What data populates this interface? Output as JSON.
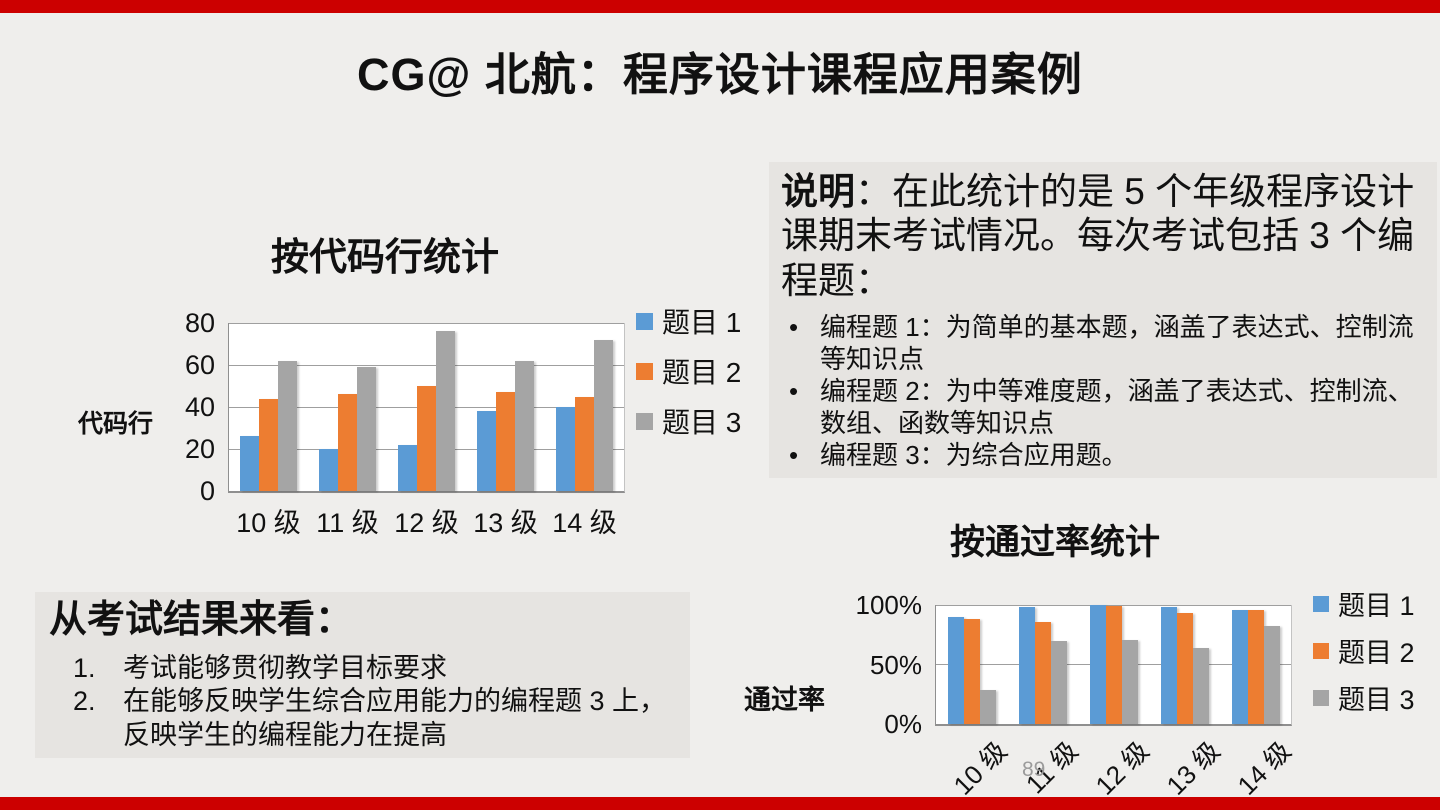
{
  "slide": {
    "title": "CG@ 北航：程序设计课程应用案例",
    "page_number": "89",
    "accent_bar_color": "#cc0000",
    "background_color": "#efeeec",
    "panel_color": "#e6e4e1"
  },
  "description_panel": {
    "heading_bold": "说明",
    "heading_rest": "：在此统计的是 5 个年级程序设计课期末考试情况。每次考试包括 3 个编程题：",
    "bullets": [
      "编程题 1：为简单的基本题，涵盖了表达式、控制流等知识点",
      "编程题 2：为中等难度题，涵盖了表达式、控制流、数组、函数等知识点",
      "编程题 3：为综合应用题。"
    ]
  },
  "conclusion_panel": {
    "heading": "从考试结果来看：",
    "items": [
      "考试能够贯彻教学目标要求",
      "在能够反映学生综合应用能力的编程题 3 上，反映学生的编程能力在提高"
    ]
  },
  "chart_data": [
    {
      "id": "code-lines",
      "type": "bar",
      "title": "按代码行统计",
      "ylabel": "代码行",
      "xlabel": "",
      "categories": [
        "10 级",
        "11 级",
        "12 级",
        "13 级",
        "14 级"
      ],
      "series": [
        {
          "name": "题目 1",
          "color": "#5B9BD5",
          "values": [
            26,
            20,
            22,
            38,
            40
          ]
        },
        {
          "name": "题目 2",
          "color": "#ED7D31",
          "values": [
            44,
            46,
            50,
            47,
            45
          ]
        },
        {
          "name": "题目 3",
          "color": "#A5A5A5",
          "values": [
            62,
            59,
            76,
            62,
            72
          ]
        }
      ],
      "ylim": [
        0,
        80
      ],
      "yticks": [
        0,
        20,
        40,
        60,
        80
      ],
      "ytick_labels": [
        "0",
        "20",
        "40",
        "60",
        "80"
      ],
      "grid": true,
      "legend_position": "right"
    },
    {
      "id": "pass-rate",
      "type": "bar",
      "title": "按通过率统计",
      "ylabel": "通过率",
      "xlabel": "",
      "categories": [
        "10 级",
        "11 级",
        "12 级",
        "13 级",
        "14 级"
      ],
      "series": [
        {
          "name": "题目 1",
          "color": "#5B9BD5",
          "values": [
            90,
            98,
            100,
            98,
            96
          ]
        },
        {
          "name": "题目 2",
          "color": "#ED7D31",
          "values": [
            88,
            86,
            99,
            93,
            96
          ]
        },
        {
          "name": "题目 3",
          "color": "#A5A5A5",
          "values": [
            29,
            70,
            71,
            64,
            82
          ]
        }
      ],
      "ylim": [
        0,
        100
      ],
      "yticks": [
        0,
        50,
        100
      ],
      "ytick_labels": [
        "0%",
        "50%",
        "100%"
      ],
      "grid": true,
      "legend_position": "right",
      "xtick_rotation": -45
    }
  ]
}
